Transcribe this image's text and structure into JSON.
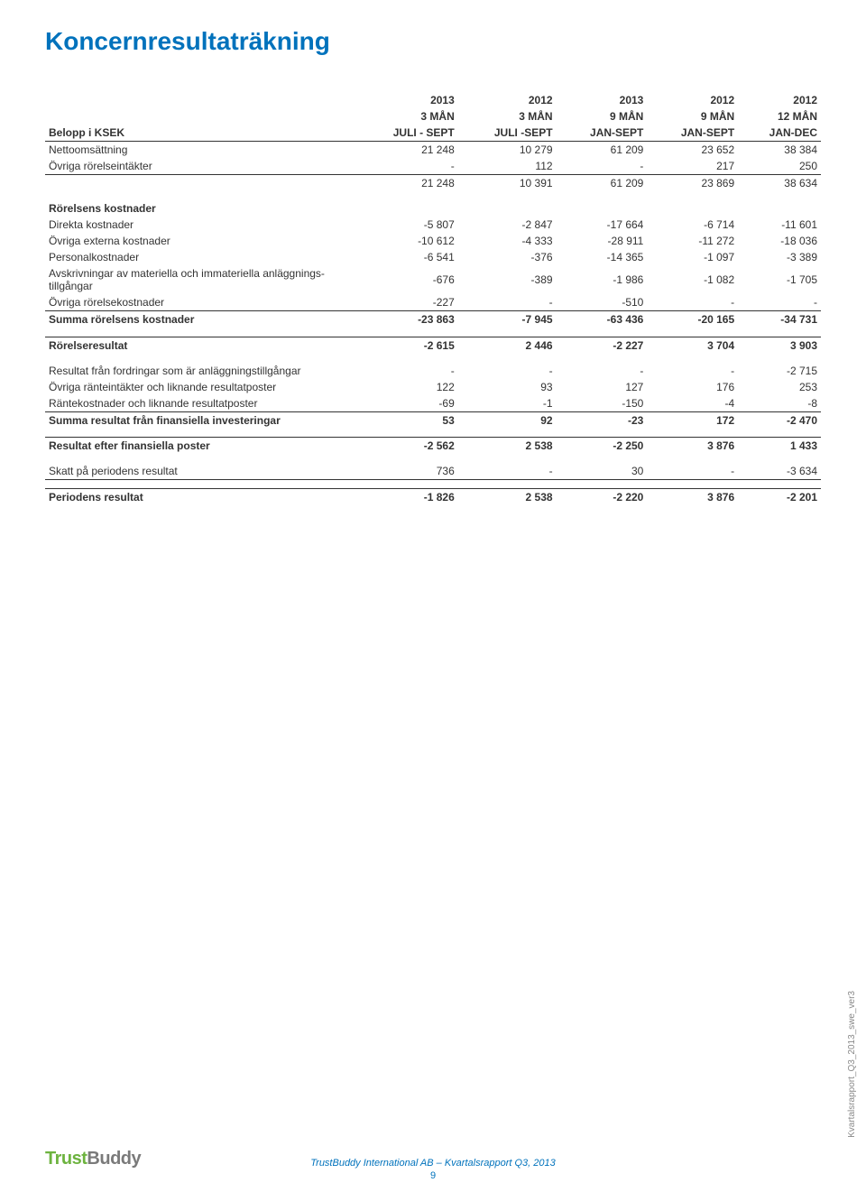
{
  "title": "Koncernresultaträkning",
  "colors": {
    "accent": "#0072bc",
    "text": "#333333",
    "logo_green": "#6db33f",
    "logo_grey": "#7a7a7a"
  },
  "table": {
    "columns": [
      {
        "year": "2013",
        "period": "3 MÅN",
        "range": "JULI - SEPT"
      },
      {
        "year": "2012",
        "period": "3 MÅN",
        "range": "JULI -SEPT"
      },
      {
        "year": "2013",
        "period": "9 MÅN",
        "range": "JAN-SEPT"
      },
      {
        "year": "2012",
        "period": "9 MÅN",
        "range": "JAN-SEPT"
      },
      {
        "year": "2012",
        "period": "12 MÅN",
        "range": "JAN-DEC"
      }
    ],
    "row_label_header": "Belopp i KSEK",
    "sections": [
      {
        "rows": [
          {
            "label": "Nettoomsättning",
            "v": [
              "21 248",
              "10 279",
              "61 209",
              "23 652",
              "38 384"
            ],
            "rule_top": false
          },
          {
            "label": "Övriga rörelseintäkter",
            "v": [
              "-",
              "112",
              "-",
              "217",
              "250"
            ]
          },
          {
            "label": "",
            "v": [
              "21 248",
              "10 391",
              "61 209",
              "23 869",
              "38 634"
            ],
            "rule_top": true
          }
        ]
      },
      {
        "heading": "Rörelsens kostnader",
        "rows": [
          {
            "label": "Direkta kostnader",
            "v": [
              "-5 807",
              "-2 847",
              "-17 664",
              "-6 714",
              "-11 601"
            ]
          },
          {
            "label": "Övriga externa kostnader",
            "v": [
              "-10 612",
              "-4 333",
              "-28 911",
              "-11 272",
              "-18 036"
            ]
          },
          {
            "label": "Personalkostnader",
            "v": [
              "-6 541",
              "-376",
              "-14 365",
              "-1 097",
              "-3 389"
            ]
          },
          {
            "label": "Avskrivningar av materiella och immateriella anläggnings-tillgångar",
            "v": [
              "-676",
              "-389",
              "-1 986",
              "-1 082",
              "-1 705"
            ],
            "wrap": true
          },
          {
            "label": "Övriga rörelsekostnader",
            "v": [
              "-227",
              "-",
              "-510",
              "-",
              "-"
            ]
          },
          {
            "label": "Summa rörelsens kostnader",
            "v": [
              "-23 863",
              "-7 945",
              "-63 436",
              "-20 165",
              "-34 731"
            ],
            "bold": true,
            "rule_top": true
          }
        ]
      },
      {
        "rows": [
          {
            "label": "Rörelseresultat",
            "v": [
              "-2 615",
              "2 446",
              "-2 227",
              "3 704",
              "3 903"
            ],
            "bold": true,
            "rule_top_thick": true
          }
        ]
      },
      {
        "rows": [
          {
            "label": "Resultat från fordringar som är anläggningstillgångar",
            "v": [
              "-",
              "-",
              "-",
              "-",
              "-2 715"
            ]
          },
          {
            "label": "Övriga ränteintäkter och liknande resultatposter",
            "v": [
              "122",
              "93",
              "127",
              "176",
              "253"
            ]
          },
          {
            "label": "Räntekostnader och liknande resultatposter",
            "v": [
              "-69",
              "-1",
              "-150",
              "-4",
              "-8"
            ]
          },
          {
            "label": "Summa resultat från finansiella investeringar",
            "v": [
              "53",
              "92",
              "-23",
              "172",
              "-2 470"
            ],
            "bold": true,
            "rule_top": true
          }
        ]
      },
      {
        "rows": [
          {
            "label": "Resultat efter finansiella poster",
            "v": [
              "-2 562",
              "2 538",
              "-2 250",
              "3 876",
              "1 433"
            ],
            "bold": true,
            "rule_top_thick": true
          }
        ]
      },
      {
        "rows": [
          {
            "label": "Skatt på periodens resultat",
            "v": [
              "736",
              "-",
              "30",
              "-",
              "-3 634"
            ],
            "rule_bottom": true
          }
        ]
      },
      {
        "rows": [
          {
            "label": "Periodens resultat",
            "v": [
              "-1 826",
              "2 538",
              "-2 220",
              "3 876",
              "-2 201"
            ],
            "bold": true,
            "rule_top_thick": true
          }
        ]
      }
    ]
  },
  "footer": {
    "logo_part1": "Trust",
    "logo_part2": "Buddy",
    "center": "TrustBuddy International AB – Kvartalsrapport Q3, 2013",
    "page": "9",
    "side": "Kvartalsrapport_Q3_2013_swe_ver3"
  }
}
